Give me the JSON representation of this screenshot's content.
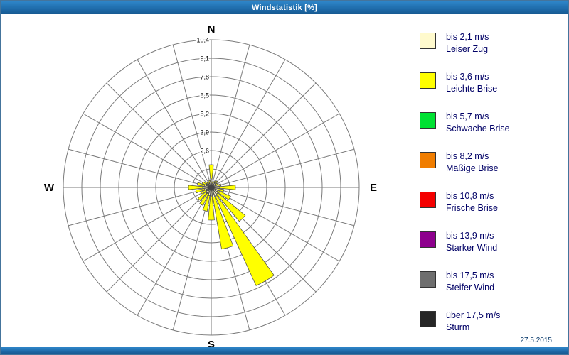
{
  "window": {
    "title": "Windstatistik [%]",
    "date": "27.5.2015"
  },
  "colors": {
    "titlebar": "#1f6cab",
    "frame": "#44749c",
    "grid": "#7a7a7a",
    "petal_outline": "#444444",
    "legend_text": "#000066",
    "compass_text": "#000000"
  },
  "legend": {
    "items": [
      {
        "key": "bis_2_1",
        "color": "#fffacd",
        "speed": "bis 2,1 m/s",
        "name": "Leiser Zug"
      },
      {
        "key": "bis_3_6",
        "color": "#ffff00",
        "speed": "bis 3,6 m/s",
        "name": "Leichte Brise"
      },
      {
        "key": "bis_5_7",
        "color": "#00e132",
        "speed": "bis 5,7 m/s",
        "name": "Schwache Brise"
      },
      {
        "key": "bis_8_2",
        "color": "#f07d00",
        "speed": "bis 8,2 m/s",
        "name": "Mäßige Brise"
      },
      {
        "key": "bis_10_8",
        "color": "#f40000",
        "speed": "bis 10,8 m/s",
        "name": "Frische Brise"
      },
      {
        "key": "bis_13_9",
        "color": "#8d008d",
        "speed": "bis 13,9 m/s",
        "name": "Starker Wind"
      },
      {
        "key": "bis_17_5",
        "color": "#6e6e6e",
        "speed": "bis 17,5 m/s",
        "name": "Steifer Wind"
      },
      {
        "key": "ueber_17_5",
        "color": "#262626",
        "speed": "über 17,5 m/s",
        "name": "Sturm"
      }
    ]
  },
  "chart_data": {
    "type": "wind_rose",
    "title": "Windstatistik [%]",
    "units": "%",
    "sector_step_deg": 15,
    "petal_half_width_deg": 5.5,
    "ring_step": 1.3,
    "ring_max": 10.4,
    "ring_count": 8,
    "ring_labels": [
      "2,6",
      "3,9",
      "5,2",
      "6,5",
      "7,8",
      "9,1",
      "10,4"
    ],
    "ring_label_values": [
      2.6,
      3.9,
      5.2,
      6.5,
      7.8,
      9.1,
      10.4
    ],
    "compass": {
      "n": "N",
      "e": "E",
      "s": "S",
      "w": "W"
    },
    "class_colors": {
      "bis_2_1": "#fffacd",
      "bis_3_6": "#ffff00",
      "bis_5_7": "#00e132",
      "bis_8_2": "#f07d00",
      "bis_10_8": "#f40000",
      "bis_13_9": "#8d008d",
      "bis_17_5": "#6e6e6e",
      "ueber_17_5": "#262626"
    },
    "petals": [
      {
        "dir_deg": 0,
        "segments": [
          [
            "bis_2_1",
            0.6
          ],
          [
            "bis_3_6",
            1.0
          ]
        ]
      },
      {
        "dir_deg": 15,
        "segments": [
          [
            "bis_2_1",
            0.3
          ],
          [
            "bis_3_6",
            0.1
          ]
        ]
      },
      {
        "dir_deg": 30,
        "segments": [
          [
            "bis_2_1",
            0.4
          ],
          [
            "bis_3_6",
            0.1
          ]
        ]
      },
      {
        "dir_deg": 45,
        "segments": [
          [
            "bis_2_1",
            0.4
          ],
          [
            "bis_3_6",
            0.2
          ]
        ]
      },
      {
        "dir_deg": 60,
        "segments": [
          [
            "bis_2_1",
            0.4
          ],
          [
            "bis_3_6",
            0.1
          ]
        ]
      },
      {
        "dir_deg": 75,
        "segments": [
          [
            "bis_2_1",
            0.5
          ],
          [
            "bis_3_6",
            0.2
          ]
        ]
      },
      {
        "dir_deg": 90,
        "segments": [
          [
            "bis_2_1",
            0.6
          ],
          [
            "bis_3_6",
            1.1
          ]
        ]
      },
      {
        "dir_deg": 105,
        "segments": [
          [
            "bis_2_1",
            0.5
          ],
          [
            "bis_3_6",
            0.4
          ]
        ]
      },
      {
        "dir_deg": 120,
        "segments": [
          [
            "bis_2_1",
            0.5
          ],
          [
            "bis_3_6",
            1.0
          ]
        ]
      },
      {
        "dir_deg": 135,
        "segments": [
          [
            "bis_2_1",
            0.6
          ],
          [
            "bis_3_6",
            2.5
          ]
        ]
      },
      {
        "dir_deg": 150,
        "segments": [
          [
            "bis_2_1",
            0.7
          ],
          [
            "bis_3_6",
            6.9
          ]
        ]
      },
      {
        "dir_deg": 165,
        "segments": [
          [
            "bis_2_1",
            0.7
          ],
          [
            "bis_3_6",
            3.7
          ]
        ]
      },
      {
        "dir_deg": 180,
        "segments": [
          [
            "bis_2_1",
            0.6
          ],
          [
            "bis_3_6",
            1.7
          ]
        ]
      },
      {
        "dir_deg": 195,
        "segments": [
          [
            "bis_2_1",
            0.6
          ],
          [
            "bis_3_6",
            1.1
          ]
        ]
      },
      {
        "dir_deg": 210,
        "segments": [
          [
            "bis_2_1",
            0.5
          ],
          [
            "bis_3_6",
            0.9
          ]
        ]
      },
      {
        "dir_deg": 225,
        "segments": [
          [
            "bis_2_1",
            0.5
          ],
          [
            "bis_3_6",
            0.7
          ]
        ]
      },
      {
        "dir_deg": 240,
        "segments": [
          [
            "bis_2_1",
            0.4
          ],
          [
            "bis_3_6",
            0.4
          ]
        ]
      },
      {
        "dir_deg": 255,
        "segments": [
          [
            "bis_2_1",
            0.5
          ],
          [
            "bis_3_6",
            0.6
          ]
        ]
      },
      {
        "dir_deg": 270,
        "segments": [
          [
            "bis_2_1",
            0.6
          ],
          [
            "bis_3_6",
            1.0
          ]
        ]
      },
      {
        "dir_deg": 285,
        "segments": [
          [
            "bis_2_1",
            0.5
          ],
          [
            "bis_3_6",
            0.5
          ]
        ]
      },
      {
        "dir_deg": 300,
        "segments": [
          [
            "bis_2_1",
            0.4
          ],
          [
            "bis_3_6",
            0.3
          ]
        ]
      },
      {
        "dir_deg": 315,
        "segments": [
          [
            "bis_2_1",
            0.4
          ],
          [
            "bis_3_6",
            0.1
          ]
        ]
      },
      {
        "dir_deg": 330,
        "segments": [
          [
            "bis_2_1",
            0.3
          ],
          [
            "bis_3_6",
            0.1
          ]
        ]
      },
      {
        "dir_deg": 345,
        "segments": [
          [
            "bis_2_1",
            0.4
          ],
          [
            "bis_3_6",
            0.1
          ]
        ]
      }
    ]
  }
}
